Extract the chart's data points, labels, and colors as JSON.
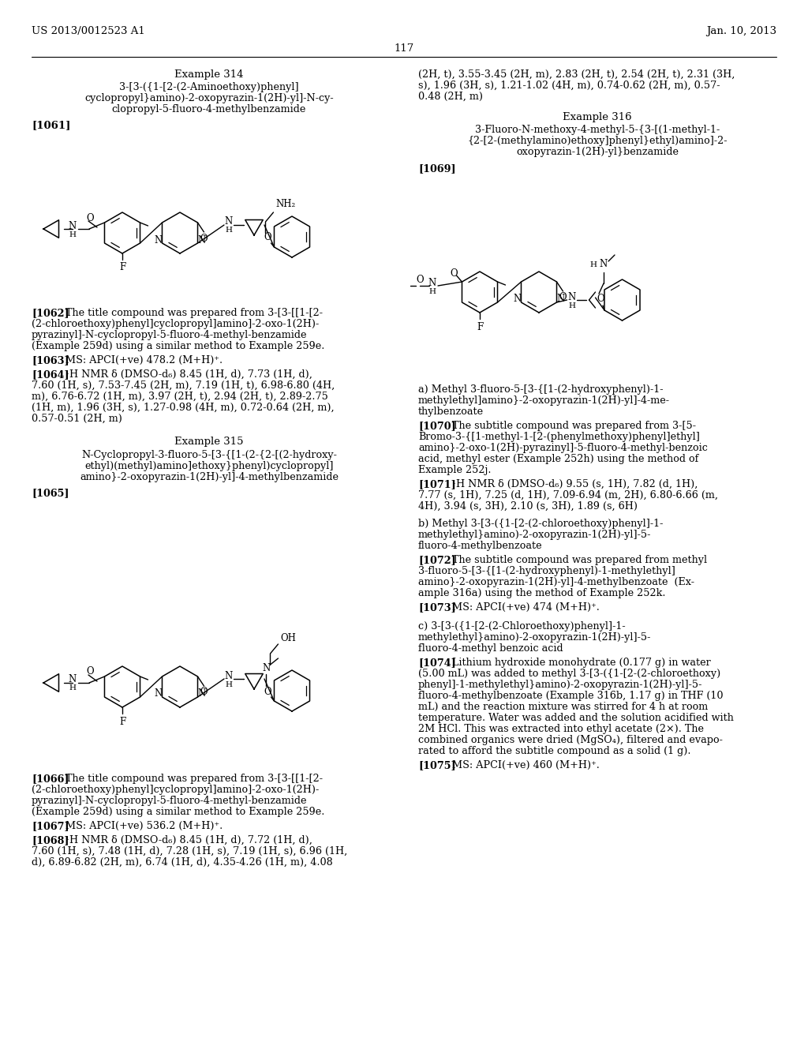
{
  "page_number": "117",
  "header_left": "US 2013/0012523 A1",
  "header_right": "Jan. 10, 2013",
  "bg": "#ffffff"
}
